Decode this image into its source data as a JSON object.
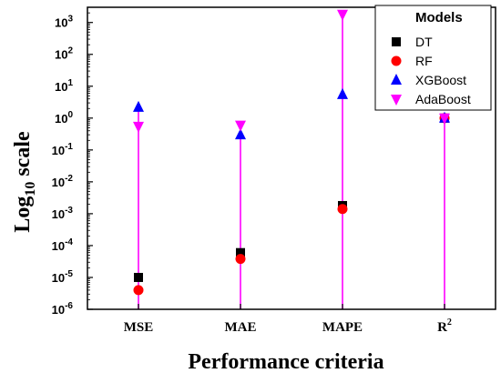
{
  "chart_data": {
    "type": "scatter",
    "x_scale": "categorical",
    "y_scale": "log",
    "ylim": [
      1e-06,
      3000
    ],
    "categories": [
      "MSE",
      "MAE",
      "MAPE",
      "R"
    ],
    "category_superscripts": [
      "",
      "",
      "",
      "2"
    ],
    "ylabel": {
      "base": "Log",
      "sub": "10",
      "rest": " scale"
    },
    "xlabel": "Performance criteria",
    "y_ticks": [
      {
        "value": 1e-06,
        "mantissa": "10",
        "exp": "-6"
      },
      {
        "value": 1e-05,
        "mantissa": "10",
        "exp": "-5"
      },
      {
        "value": 0.0001,
        "mantissa": "10",
        "exp": "-4"
      },
      {
        "value": 0.001,
        "mantissa": "10",
        "exp": "-3"
      },
      {
        "value": 0.01,
        "mantissa": "10",
        "exp": "-2"
      },
      {
        "value": 0.1,
        "mantissa": "10",
        "exp": "-1"
      },
      {
        "value": 1,
        "mantissa": "10",
        "exp": "0"
      },
      {
        "value": 10,
        "mantissa": "10",
        "exp": "1"
      },
      {
        "value": 100,
        "mantissa": "10",
        "exp": "2"
      },
      {
        "value": 1000,
        "mantissa": "10",
        "exp": "3"
      }
    ],
    "legend": {
      "title": "Models",
      "position": "top-right"
    },
    "series": [
      {
        "name": "DT",
        "marker": "square",
        "color": "#000000",
        "values": [
          1e-05,
          6e-05,
          0.0018,
          1.0
        ]
      },
      {
        "name": "RF",
        "marker": "circle",
        "color": "#ff0000",
        "values": [
          4e-06,
          3.8e-05,
          0.0014,
          1.0
        ]
      },
      {
        "name": "XGBoost",
        "marker": "triangle-up",
        "color": "#0000ff",
        "values": [
          2.2,
          0.3,
          5.5,
          1.0
        ]
      },
      {
        "name": "AdaBoost",
        "marker": "triangle-down",
        "color": "#ff00ff",
        "values": [
          0.55,
          0.6,
          1800,
          1.0
        ]
      }
    ],
    "stem_color": "#ff00ff",
    "grid": false
  }
}
